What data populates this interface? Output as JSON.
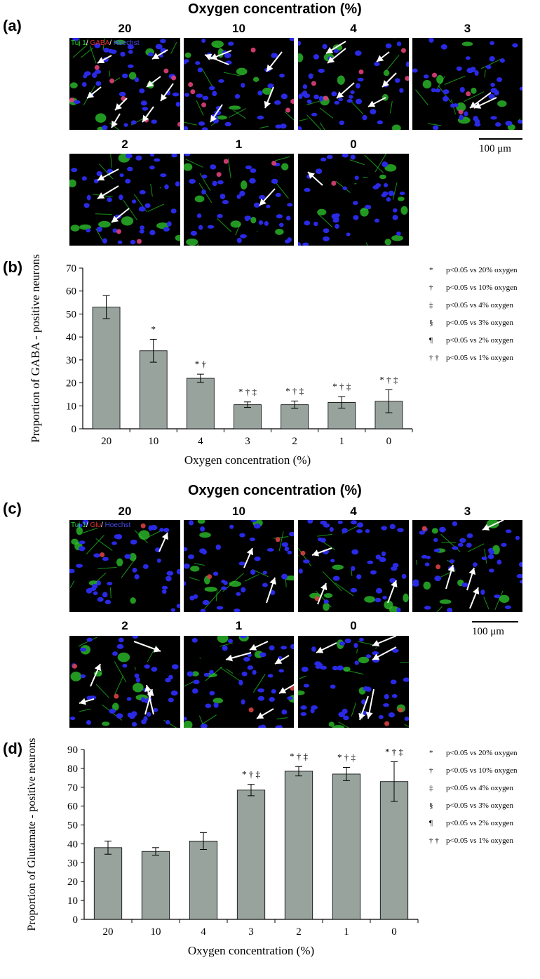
{
  "panel_a": {
    "letter": "(a)",
    "header": "Oxygen concentration (%)",
    "columns": [
      "20",
      "10",
      "4",
      "3",
      "2",
      "1",
      "0"
    ],
    "stain_label": {
      "green": "Tuj 1",
      "red": "GABA",
      "blue": "Hoechst"
    },
    "scale_bar": "100 μm"
  },
  "panel_c": {
    "letter": "(c)",
    "header": "Oxygen concentration (%)",
    "columns": [
      "20",
      "10",
      "4",
      "3",
      "2",
      "1",
      "0"
    ],
    "stain_label": {
      "green": "Tuj 1",
      "red": "Glu",
      "blue": "Hoechst"
    },
    "scale_bar": "100 μm"
  },
  "panel_b_letter": "(b)",
  "panel_d_letter": "(d)",
  "chart_data": [
    {
      "type": "bar",
      "categories": [
        "20",
        "10",
        "4",
        "3",
        "2",
        "1",
        "0"
      ],
      "values": [
        53,
        34,
        22,
        10.5,
        10.5,
        11.5,
        12
      ],
      "errors": [
        5,
        5,
        1.8,
        1.2,
        1.6,
        2.5,
        5
      ],
      "significance": [
        "",
        "*",
        "* †",
        "* † ‡",
        "* † ‡",
        "* † ‡",
        "* † ‡"
      ],
      "xlabel": "Oxygen concentration (%)",
      "ylabel": "Proportion of  GABA - positive neurons",
      "ylim": [
        0,
        70
      ],
      "yticks": [
        0,
        10,
        20,
        30,
        40,
        50,
        60,
        70
      ],
      "bar_color": "#97a39c",
      "legend": [
        {
          "sym": "*",
          "text": "p<0.05 vs 20% oxygen"
        },
        {
          "sym": "†",
          "text": "p<0.05 vs 10% oxygen"
        },
        {
          "sym": "‡",
          "text": "p<0.05 vs  4% oxygen"
        },
        {
          "sym": "§",
          "text": "p<0.05 vs  3% oxygen"
        },
        {
          "sym": "¶",
          "text": "p<0.05 vs   2% oxygen"
        },
        {
          "sym": "† †",
          "text": "p<0.05 vs 1% oxygen"
        }
      ]
    },
    {
      "type": "bar",
      "categories": [
        "20",
        "10",
        "4",
        "3",
        "2",
        "1",
        "0"
      ],
      "values": [
        38,
        36,
        41.5,
        68.5,
        78.5,
        77,
        73
      ],
      "errors": [
        3.5,
        2,
        4.5,
        3,
        2.5,
        3.5,
        10.5
      ],
      "significance": [
        "",
        "",
        "",
        "* † ‡",
        "* † ‡",
        "* † ‡",
        "* † ‡"
      ],
      "xlabel": "Oxygen concentration (%)",
      "ylabel": "Proportion of  Glutamate - positive neurons",
      "ylim": [
        0,
        90
      ],
      "yticks": [
        0,
        10,
        20,
        30,
        40,
        50,
        60,
        70,
        80,
        90
      ],
      "bar_color": "#97a39c",
      "legend": [
        {
          "sym": "*",
          "text": "p<0.05 vs 20% oxygen"
        },
        {
          "sym": "†",
          "text": "p<0.05 vs 10% oxygen"
        },
        {
          "sym": "‡",
          "text": "p<0.05 vs  4% oxygen"
        },
        {
          "sym": "§",
          "text": "p<0.05 vs  3% oxygen"
        },
        {
          "sym": "¶",
          "text": "p<0.05 vs   2% oxygen"
        },
        {
          "sym": "† †",
          "text": "p<0.05 vs 1% oxygen"
        }
      ]
    }
  ]
}
